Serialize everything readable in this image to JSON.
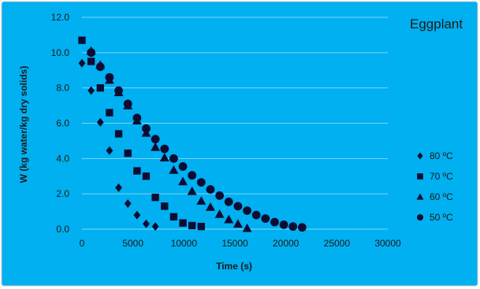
{
  "chart_data": {
    "type": "scatter",
    "title": "Eggplant",
    "xlabel": "Time (s)",
    "ylabel": "W (kg water/kg dry solids)",
    "xlim": [
      0,
      30000
    ],
    "ylim": [
      0,
      12
    ],
    "x_ticks": [
      "0",
      "5000",
      "10000",
      "15000",
      "20000",
      "25000",
      "30000"
    ],
    "y_ticks": [
      "0.0",
      "2.0",
      "4.0",
      "6.0",
      "8.0",
      "10.0",
      "12.0"
    ],
    "grid": "horizontal",
    "legend_position": "right",
    "colors": {
      "background": "#00b0f0",
      "marker": "#0d0d33",
      "gridline": "#7fd7f7",
      "plot_area": "#00b0f0",
      "border": "#c8c8c8"
    },
    "series": [
      {
        "name": "80 ºC",
        "marker": "diamond",
        "x": [
          0,
          900,
          1800,
          2700,
          3600,
          4500,
          5400,
          6300,
          7200
        ],
        "y": [
          9.4,
          7.85,
          6.05,
          4.45,
          2.35,
          1.45,
          0.8,
          0.3,
          0.15
        ]
      },
      {
        "name": "70 ºC",
        "marker": "square",
        "x": [
          0,
          900,
          1800,
          2700,
          3600,
          4500,
          5400,
          6300,
          7200,
          8100,
          9000,
          9900,
          10800,
          11700
        ],
        "y": [
          10.7,
          9.5,
          8.0,
          6.6,
          5.4,
          4.3,
          3.3,
          3.0,
          1.8,
          1.3,
          0.7,
          0.35,
          0.2,
          0.15
        ]
      },
      {
        "name": "60 ºC",
        "marker": "triangle",
        "x": [
          900,
          1800,
          2700,
          3600,
          4500,
          5400,
          6300,
          7200,
          8100,
          9000,
          9900,
          10800,
          11700,
          12600,
          13500,
          14400,
          15300,
          16200
        ],
        "y": [
          10.1,
          9.3,
          8.45,
          7.75,
          7.0,
          6.15,
          5.45,
          4.65,
          4.05,
          3.35,
          2.7,
          2.15,
          1.6,
          1.25,
          0.85,
          0.55,
          0.3,
          0.05
        ]
      },
      {
        "name": "50 ºC",
        "marker": "circle",
        "x": [
          900,
          1800,
          2700,
          3600,
          4500,
          5400,
          6300,
          7200,
          8100,
          9000,
          9900,
          10800,
          11700,
          12600,
          13500,
          14400,
          15300,
          16200,
          17100,
          18000,
          18900,
          19800,
          20700,
          21600
        ],
        "y": [
          10.0,
          9.2,
          8.6,
          7.85,
          7.1,
          6.3,
          5.7,
          5.1,
          4.55,
          4.0,
          3.55,
          3.05,
          2.65,
          2.25,
          1.9,
          1.55,
          1.3,
          1.05,
          0.8,
          0.6,
          0.4,
          0.25,
          0.15,
          0.1
        ]
      }
    ]
  }
}
